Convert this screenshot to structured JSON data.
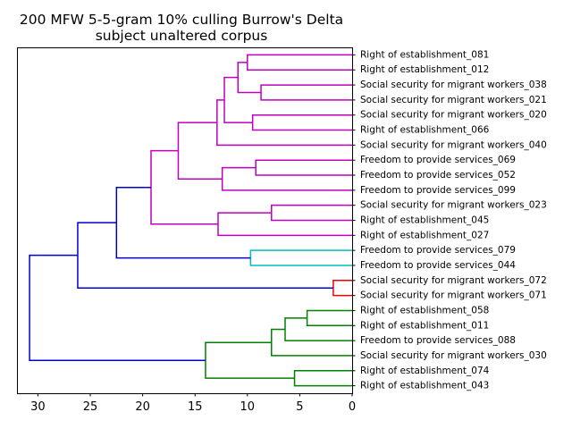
{
  "chart_data": {
    "type": "dendrogram",
    "title": "200 MFW 5-5-gram 10% culling Burrow's Delta",
    "subtitle": "subject unaltered corpus",
    "xlabel": "",
    "ylabel": "",
    "xlim": [
      32,
      0
    ],
    "x_ticks": [
      30,
      25,
      20,
      15,
      10,
      5,
      0
    ],
    "orientation": "left",
    "grid": false,
    "leaves": [
      "Right of establishment_081",
      "Right of establishment_012",
      "Social security for migrant workers_038",
      "Social security for migrant workers_021",
      "Social security for migrant workers_020",
      "Right of establishment_066",
      "Social security for migrant workers_040",
      "Freedom to provide services_069",
      "Freedom to provide services_052",
      "Freedom to provide services_099",
      "Social security for migrant workers_023",
      "Right of establishment_045",
      "Right of establishment_027",
      "Freedom to provide services_079",
      "Freedom to provide services_044",
      "Social security for migrant workers_072",
      "Social security for migrant workers_071",
      "Right of establishment_058",
      "Right of establishment_011",
      "Freedom to provide services_088",
      "Social security for migrant workers_030",
      "Right of establishment_074",
      "Right of establishment_043"
    ],
    "merges": [
      {
        "id": "m1",
        "left": 0,
        "right": 1,
        "height": 10.0,
        "color": "#bf00bf"
      },
      {
        "id": "m2",
        "left": 2,
        "right": 3,
        "height": 8.7,
        "color": "#bf00bf"
      },
      {
        "id": "m3",
        "left": "m1",
        "right": "m2",
        "height": 10.9,
        "color": "#bf00bf"
      },
      {
        "id": "m4",
        "left": 4,
        "right": 5,
        "height": 9.5,
        "color": "#bf00bf"
      },
      {
        "id": "m5",
        "left": "m3",
        "right": "m4",
        "height": 12.2,
        "color": "#bf00bf"
      },
      {
        "id": "m6",
        "left": "m5",
        "right": 6,
        "height": 12.9,
        "color": "#bf00bf"
      },
      {
        "id": "m7",
        "left": 7,
        "right": 8,
        "height": 9.2,
        "color": "#bf00bf"
      },
      {
        "id": "m8",
        "left": "m7",
        "right": 9,
        "height": 12.4,
        "color": "#bf00bf"
      },
      {
        "id": "m9",
        "left": "m6",
        "right": "m8",
        "height": 16.6,
        "color": "#bf00bf"
      },
      {
        "id": "m10",
        "left": 10,
        "right": 11,
        "height": 7.7,
        "color": "#bf00bf"
      },
      {
        "id": "m11",
        "left": "m10",
        "right": 12,
        "height": 12.8,
        "color": "#bf00bf"
      },
      {
        "id": "m12",
        "left": "m9",
        "right": "m11",
        "height": 19.2,
        "color": "#bf00bf"
      },
      {
        "id": "m13",
        "left": 13,
        "right": 14,
        "height": 9.7,
        "color": "#00bfbf"
      },
      {
        "id": "m14",
        "left": "m12",
        "right": "m13",
        "height": 22.5,
        "color": "#0000cc"
      },
      {
        "id": "m15",
        "left": 15,
        "right": 16,
        "height": 1.8,
        "color": "#ee0000"
      },
      {
        "id": "m16",
        "left": "m14",
        "right": "m15",
        "height": 26.2,
        "color": "#0000cc"
      },
      {
        "id": "m17",
        "left": 17,
        "right": 18,
        "height": 4.3,
        "color": "#008000"
      },
      {
        "id": "m18",
        "left": "m17",
        "right": 19,
        "height": 6.4,
        "color": "#008000"
      },
      {
        "id": "m19",
        "left": "m18",
        "right": 20,
        "height": 7.7,
        "color": "#008000"
      },
      {
        "id": "m20",
        "left": 21,
        "right": 22,
        "height": 5.5,
        "color": "#008000"
      },
      {
        "id": "m21",
        "left": "m19",
        "right": "m20",
        "height": 14.0,
        "color": "#008000"
      },
      {
        "id": "m22",
        "left": "m16",
        "right": "m21",
        "height": 30.8,
        "color": "#0000cc"
      }
    ]
  }
}
